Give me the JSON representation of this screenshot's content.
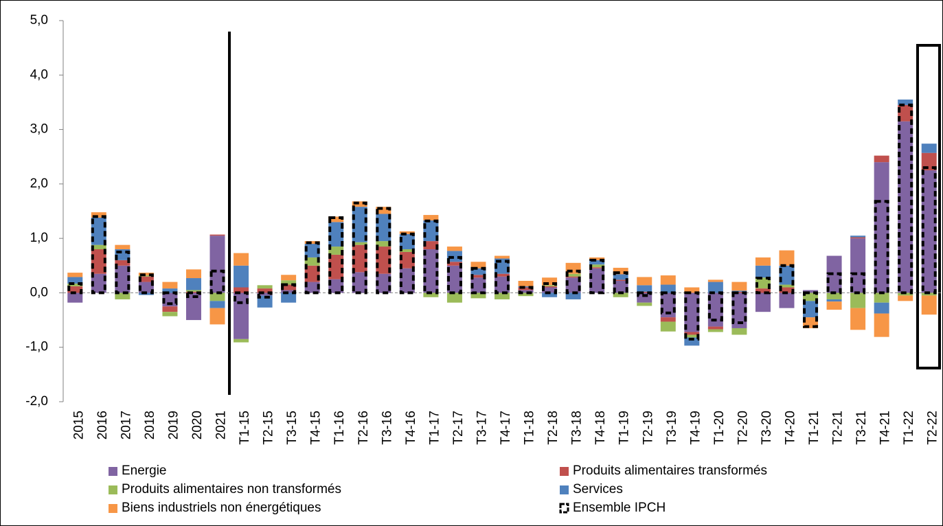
{
  "chart_data": {
    "type": "stacked-bar",
    "categories": [
      "2015",
      "2016",
      "2017",
      "2018",
      "2019",
      "2020",
      "2021",
      "T1-15",
      "T2-15",
      "T3-15",
      "T4-15",
      "T1-16",
      "T2-16",
      "T3-16",
      "T4-16",
      "T1-17",
      "T2-17",
      "T3-17",
      "T4-17",
      "T1-18",
      "T2-18",
      "T3-18",
      "T4-18",
      "T1-19",
      "T2-19",
      "T3-19",
      "T4-19",
      "T1-20",
      "T2-20",
      "T3-20",
      "T4-20",
      "T1-21",
      "T2-21",
      "T3-21",
      "T4-21",
      "T1-22",
      "T2-22"
    ],
    "series": [
      {
        "name": "Energie",
        "color": "#8064a2",
        "values": [
          -0.18,
          0.35,
          0.5,
          0.2,
          -0.25,
          -0.5,
          1.05,
          -0.85,
          -0.05,
          0.05,
          0.2,
          0.25,
          0.38,
          0.35,
          0.45,
          0.8,
          0.5,
          0.28,
          0.3,
          0.05,
          0.1,
          0.28,
          0.45,
          0.22,
          -0.18,
          -0.45,
          -0.72,
          -0.62,
          -0.65,
          -0.35,
          -0.28,
          0.05,
          0.68,
          1.0,
          2.4,
          3.15,
          2.25
        ]
      },
      {
        "name": "Produits alimentaires transformés",
        "color": "#c0504d",
        "values": [
          0.12,
          0.45,
          0.1,
          0.1,
          -0.1,
          0.02,
          0.02,
          0.1,
          0.08,
          0.1,
          0.3,
          0.45,
          0.5,
          0.5,
          0.3,
          0.15,
          0.07,
          0.05,
          0.05,
          0.05,
          0.02,
          0.02,
          0.02,
          0.02,
          0.02,
          -0.08,
          -0.05,
          -0.05,
          0.02,
          0.08,
          0.1,
          0.0,
          0.0,
          0.02,
          0.12,
          0.3,
          0.32
        ]
      },
      {
        "name": "Produits alimentaires non transformés",
        "color": "#9bbb59",
        "values": [
          0.05,
          0.08,
          -0.12,
          0.02,
          -0.08,
          0.03,
          -0.15,
          -0.06,
          0.06,
          0.08,
          0.15,
          0.15,
          0.05,
          0.1,
          0.05,
          -0.08,
          -0.18,
          -0.1,
          -0.12,
          -0.06,
          0.02,
          0.05,
          0.05,
          -0.08,
          -0.06,
          -0.18,
          -0.05,
          -0.05,
          -0.12,
          0.2,
          0.05,
          -0.15,
          -0.12,
          -0.28,
          -0.18,
          -0.05,
          -0.05
        ]
      },
      {
        "name": "Services",
        "color": "#4f81bd",
        "values": [
          0.12,
          0.5,
          0.2,
          -0.04,
          0.08,
          0.22,
          -0.13,
          0.4,
          -0.22,
          -0.18,
          0.25,
          0.45,
          0.65,
          0.5,
          0.28,
          0.38,
          0.2,
          0.12,
          0.28,
          0.02,
          -0.08,
          -0.12,
          0.08,
          0.1,
          0.12,
          0.15,
          -0.15,
          0.2,
          0.02,
          0.22,
          0.35,
          -0.3,
          -0.04,
          0.03,
          -0.2,
          0.1,
          0.17
        ]
      },
      {
        "name": "Biens industriels non énergétiques",
        "color": "#f79646",
        "values": [
          0.08,
          0.1,
          0.08,
          0.05,
          0.12,
          0.16,
          -0.3,
          0.23,
          0.0,
          0.1,
          0.05,
          0.1,
          0.1,
          0.13,
          0.05,
          0.1,
          0.08,
          0.12,
          0.05,
          0.1,
          0.14,
          0.2,
          0.05,
          0.12,
          0.15,
          0.17,
          0.1,
          0.04,
          0.16,
          0.15,
          0.28,
          -0.2,
          -0.15,
          -0.4,
          -0.43,
          -0.1,
          -0.35
        ]
      }
    ],
    "total": {
      "name": "Ensemble IPCH",
      "values": [
        0.17,
        1.4,
        0.75,
        0.33,
        -0.2,
        -0.07,
        0.4,
        -0.18,
        -0.08,
        0.15,
        0.92,
        1.38,
        1.65,
        1.55,
        1.08,
        1.32,
        0.65,
        0.45,
        0.58,
        0.1,
        0.17,
        0.4,
        0.6,
        0.37,
        -0.05,
        -0.37,
        -0.85,
        -0.5,
        -0.55,
        0.27,
        0.5,
        -0.62,
        0.35,
        0.35,
        1.68,
        3.45,
        2.3
      ]
    },
    "ylim": [
      -2,
      5
    ],
    "yticks": [
      {
        "value": -2,
        "label": "-2,0"
      },
      {
        "value": -1,
        "label": "-1,0"
      },
      {
        "value": 0,
        "label": "0,0"
      },
      {
        "value": 1,
        "label": "1,0"
      },
      {
        "value": 2,
        "label": "2,0"
      },
      {
        "value": 3,
        "label": "3,0"
      },
      {
        "value": 4,
        "label": "4,0"
      },
      {
        "value": 5,
        "label": "5,0"
      }
    ],
    "grid": false
  }
}
